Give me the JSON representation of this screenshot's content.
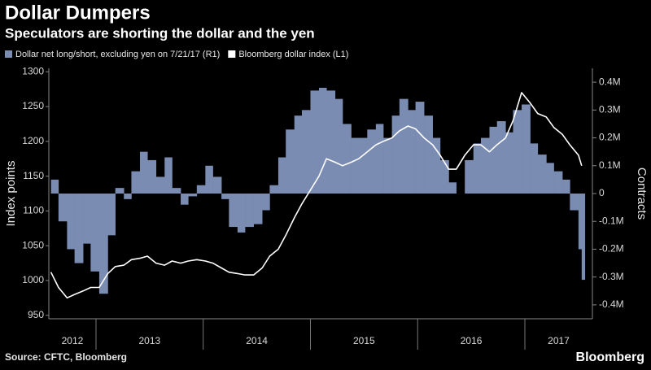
{
  "chart_data": {
    "type": "bar_line",
    "title": "Dollar Dumpers",
    "subtitle": "Speculators are shorting the dollar and the yen",
    "ylabel": "Index points",
    "y2label": "Contracts",
    "source": "Source: CFTC, Bloomberg",
    "brand": "Bloomberg",
    "x": [
      2012.58,
      2012.65,
      2012.73,
      2012.8,
      2012.88,
      2012.95,
      2013.03,
      2013.11,
      2013.18,
      2013.26,
      2013.33,
      2013.41,
      2013.48,
      2013.56,
      2013.64,
      2013.71,
      2013.79,
      2013.86,
      2013.94,
      2014.02,
      2014.09,
      2014.17,
      2014.24,
      2014.32,
      2014.39,
      2014.47,
      2014.55,
      2014.62,
      2014.7,
      2014.77,
      2014.85,
      2014.92,
      2015.0,
      2015.08,
      2015.15,
      2015.23,
      2015.3,
      2015.38,
      2015.45,
      2015.53,
      2015.61,
      2015.68,
      2015.76,
      2015.83,
      2015.91,
      2015.98,
      2016.06,
      2016.14,
      2016.21,
      2016.29,
      2016.36,
      2016.44,
      2016.52,
      2016.59,
      2016.67,
      2016.74,
      2016.82,
      2016.89,
      2016.97,
      2017.05,
      2017.12,
      2017.2,
      2017.27,
      2017.35,
      2017.42,
      2017.5,
      2017.53
    ],
    "xlim": [
      2012.56,
      2017.63
    ],
    "xticks": [
      2012,
      2013,
      2014,
      2015,
      2016,
      2017
    ],
    "ylim": [
      945,
      1305
    ],
    "yticks": [
      950,
      1000,
      1050,
      1100,
      1150,
      1200,
      1250,
      1300
    ],
    "y2lim": [
      -450000,
      450000
    ],
    "y2ticks": [
      {
        "value": 400000,
        "label": "0.4M"
      },
      {
        "value": 300000,
        "label": "0.3M"
      },
      {
        "value": 200000,
        "label": "0.2M"
      },
      {
        "value": 100000,
        "label": "0.1M"
      },
      0,
      {
        "value": -100000,
        "label": "-0.1M"
      },
      {
        "value": -200000,
        "label": "-0.2M"
      },
      {
        "value": -300000,
        "label": "-0.3M"
      },
      {
        "value": -400000,
        "label": "-0.4M"
      }
    ],
    "series": [
      {
        "name": "Dollar net long/short, excluding yen on 7/21/17 (R1)",
        "type": "bar",
        "axis": "y2",
        "color": "#7b8cb3",
        "values": [
          50000,
          -100000,
          -200000,
          -250000,
          -180000,
          -280000,
          -360000,
          -150000,
          20000,
          -20000,
          80000,
          150000,
          120000,
          60000,
          130000,
          20000,
          -40000,
          -10000,
          30000,
          100000,
          60000,
          -20000,
          -120000,
          -140000,
          -120000,
          -110000,
          -60000,
          30000,
          130000,
          230000,
          280000,
          300000,
          370000,
          380000,
          370000,
          340000,
          250000,
          200000,
          200000,
          230000,
          250000,
          200000,
          280000,
          340000,
          300000,
          330000,
          280000,
          200000,
          120000,
          40000,
          0,
          120000,
          180000,
          200000,
          240000,
          260000,
          220000,
          300000,
          320000,
          180000,
          140000,
          110000,
          80000,
          50000,
          -60000,
          -200000,
          -310000
        ]
      },
      {
        "name": "Bloomberg dollar index (L1)",
        "type": "line",
        "axis": "y",
        "color": "#ffffff",
        "values": [
          1012,
          990,
          975,
          980,
          985,
          990,
          990,
          1010,
          1020,
          1022,
          1030,
          1032,
          1035,
          1025,
          1022,
          1028,
          1025,
          1028,
          1030,
          1028,
          1025,
          1018,
          1012,
          1010,
          1008,
          1008,
          1018,
          1035,
          1045,
          1065,
          1090,
          1110,
          1130,
          1150,
          1175,
          1170,
          1165,
          1170,
          1175,
          1185,
          1195,
          1200,
          1205,
          1215,
          1222,
          1218,
          1205,
          1195,
          1180,
          1160,
          1160,
          1180,
          1195,
          1195,
          1185,
          1195,
          1205,
          1230,
          1270,
          1255,
          1240,
          1235,
          1220,
          1210,
          1195,
          1180,
          1165
        ]
      }
    ]
  }
}
